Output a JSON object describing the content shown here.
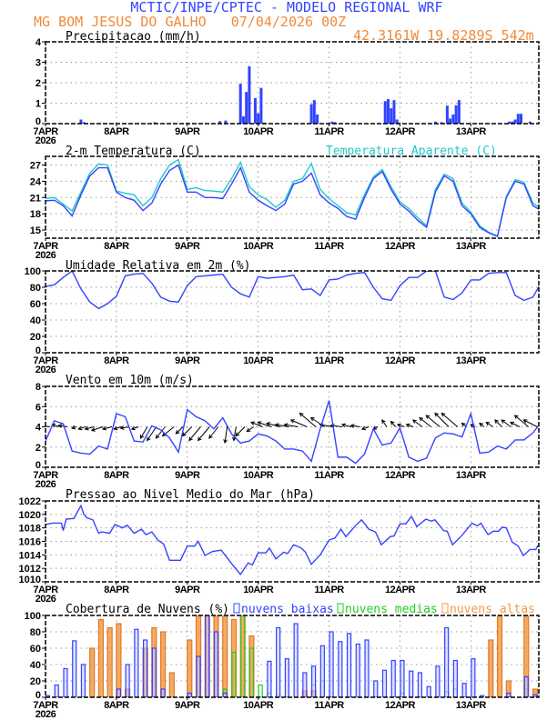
{
  "header": {
    "title": "MCTIC/INPE/CPTEC - MODELO REGIONAL WRF",
    "location_date": "MG BOM JESUS DO GALHO   07/04/2026 00Z",
    "coordinates": "42.3161W 19.8289S 542m"
  },
  "colors": {
    "blue": "#3344ff",
    "cyan": "#22c8c8",
    "orange": "#f39a4a",
    "green": "#22cc22",
    "title_blue": "#3344ff",
    "title_orange": "#f08a3a"
  },
  "chart_data": [
    {
      "type": "bar",
      "title": "Precipitacao (mm/h)",
      "ylim": [
        0,
        4
      ],
      "yticks": [
        0,
        1,
        2,
        3,
        4
      ],
      "x_unit": "hours since 07APR2026 00Z",
      "xlim": [
        0,
        167
      ],
      "x_tick_labels": [
        "7APR",
        "8APR",
        "9APR",
        "10APR",
        "11APR",
        "12APR",
        "13APR"
      ],
      "year_label": "2026",
      "bars": [
        [
          12,
          0.2
        ],
        [
          13,
          0.07
        ],
        [
          37,
          0.07
        ],
        [
          59,
          0.12
        ],
        [
          61,
          0.15
        ],
        [
          66,
          1.95
        ],
        [
          67,
          0.35
        ],
        [
          68,
          1.55
        ],
        [
          69,
          2.8
        ],
        [
          71,
          1.25
        ],
        [
          72,
          0.5
        ],
        [
          73,
          1.75
        ],
        [
          74,
          0.05
        ],
        [
          90,
          0.95
        ],
        [
          91,
          1.15
        ],
        [
          92,
          0.45
        ],
        [
          97,
          0.1
        ],
        [
          98,
          0.07
        ],
        [
          115,
          1.1
        ],
        [
          116,
          1.2
        ],
        [
          117,
          0.75
        ],
        [
          118,
          1.15
        ],
        [
          119,
          0.2
        ],
        [
          132,
          0.1
        ],
        [
          134,
          0.07
        ],
        [
          136,
          0.88
        ],
        [
          137,
          0.25
        ],
        [
          138,
          0.45
        ],
        [
          139,
          0.9
        ],
        [
          140,
          1.15
        ],
        [
          157,
          0.1
        ],
        [
          158,
          0.1
        ],
        [
          159,
          0.2
        ],
        [
          160,
          0.48
        ],
        [
          161,
          0.48
        ],
        [
          164,
          0.1
        ]
      ]
    },
    {
      "type": "line",
      "title": "2-m Temperatura (C)",
      "legend": "Temperatura Aparente (C)",
      "ylim": [
        13.5,
        28.6
      ],
      "yticks": [
        15,
        18,
        21,
        24,
        27
      ],
      "x_step_hours": 3,
      "series": [
        {
          "name": "2-m Temperatura",
          "values": [
            20.4,
            20.5,
            19.5,
            17.6,
            21.5,
            25,
            26.5,
            26.5,
            22,
            21,
            20.5,
            18.6,
            20,
            23.5,
            26,
            27,
            22,
            22,
            21,
            21,
            20.8,
            23.5,
            26.5,
            22,
            20.5,
            19.5,
            18.6,
            19.8,
            23.5,
            24,
            25.5,
            21.5,
            20,
            19,
            17.5,
            17,
            21,
            24.5,
            25.8,
            22.5,
            19.8,
            18.5,
            16.8,
            15.5,
            22,
            25,
            24,
            19.5,
            18,
            15.5,
            14.5,
            13.8,
            21,
            24,
            23.5,
            19.5,
            18.5
          ]
        },
        {
          "name": "Temperatura Aparente",
          "values": [
            20.8,
            21,
            19.8,
            18.5,
            22,
            25.5,
            27.2,
            27,
            22.2,
            21.8,
            21.5,
            19.5,
            21,
            24.5,
            27,
            28,
            22.5,
            22.8,
            22.3,
            22.2,
            22,
            24.5,
            27.5,
            23,
            21.5,
            20.6,
            19.2,
            20.5,
            24,
            24.5,
            27.3,
            22.5,
            20.8,
            19.5,
            18.2,
            17.8,
            21.5,
            24.8,
            26.2,
            23,
            20.2,
            19,
            17.3,
            15.8,
            22.5,
            25.3,
            24.5,
            20,
            18.3,
            15.8,
            14.6,
            13.9,
            21.2,
            24.3,
            23.8,
            20,
            18.8
          ]
        }
      ]
    },
    {
      "type": "line",
      "title": "Umidade Relativa em 2m (%)",
      "ylim": [
        0,
        100
      ],
      "yticks": [
        0,
        20,
        40,
        60,
        80,
        100
      ],
      "x_step_hours": 3,
      "values": [
        81,
        83,
        92,
        100,
        78,
        62,
        54,
        60,
        69,
        94,
        96,
        97,
        85,
        68,
        63,
        62,
        82,
        93,
        94,
        95,
        96,
        80,
        72,
        68,
        93,
        91,
        92,
        93,
        95,
        77,
        78,
        70,
        89,
        90,
        95,
        97,
        98,
        80,
        66,
        64,
        82,
        92,
        92,
        100,
        100,
        68,
        65,
        73,
        89,
        89,
        97,
        98,
        98,
        70,
        64,
        68,
        87
      ]
    },
    {
      "type": "line",
      "title": "Vento em 10m (m/s)",
      "ylim": [
        0,
        8
      ],
      "yticks": [
        0,
        2,
        4,
        6,
        8
      ],
      "x_step_hours": 3,
      "values": [
        2.6,
        4.6,
        4.3,
        1.6,
        1.4,
        1.3,
        2.1,
        1.8,
        5.3,
        5.0,
        2.6,
        2.5,
        4.1,
        3.7,
        2.9,
        1.5,
        5.7,
        5.0,
        4.6,
        3.8,
        4.9,
        3.3,
        2.4,
        2.6,
        3.3,
        3.1,
        2.6,
        1.8,
        1.8,
        1.6,
        0.6,
        3.8,
        6.6,
        1.0,
        1.0,
        0.4,
        1.3,
        3.8,
        2.2,
        2.4,
        3.9,
        1.0,
        0.6,
        0.9,
        2.9,
        3.4,
        3.3,
        3.0,
        5.3,
        1.4,
        1.5,
        2.1,
        1.8,
        2.7,
        2.7,
        3.4,
        4.5
      ],
      "vectors_u": [
        -2,
        -1.5,
        -2,
        -1,
        -1.5,
        -2,
        -2.5,
        -2,
        -1.5,
        -2,
        -1.5,
        -1.5,
        -2,
        -2,
        -2.5,
        -1.5,
        -2,
        -2.5,
        -2.5,
        -2,
        -0.5,
        -0.5,
        -2,
        -1.5,
        -2.5,
        -3,
        -3,
        -3,
        -3,
        -3.5,
        -3.5,
        -3,
        -3,
        -2.5,
        -2,
        -2,
        -1.5,
        -1,
        -1,
        -1,
        -1.5,
        -1.5,
        -2,
        -2.5,
        -3,
        -3,
        -3.5,
        -1,
        -1,
        -1,
        -1.5,
        -1.5,
        -2,
        -2,
        -3,
        -3
      ],
      "vectors_v": [
        0.3,
        0.5,
        0.3,
        -0.3,
        -0.5,
        -0.5,
        -0.8,
        -0.5,
        -0.5,
        -0.3,
        -0.5,
        -2.5,
        -3,
        -2.5,
        -2,
        -1.5,
        -2,
        -3,
        -3,
        -2.5,
        -3.5,
        -3,
        -2,
        -1,
        1,
        1,
        0.8,
        0.5,
        0.5,
        1.5,
        3,
        2,
        0.5,
        0.3,
        0.5,
        0.3,
        -0.5,
        -0.5,
        1.5,
        1.2,
        0.5,
        0.5,
        1.5,
        2,
        2.5,
        3,
        3,
        0.8,
        0.5,
        0.8,
        1,
        1.5,
        1.5,
        1,
        2.5,
        1.5
      ]
    },
    {
      "type": "line",
      "title": "Pressao ao Nivel Medio do Mar (hPa)",
      "ylim": [
        1010,
        1022
      ],
      "yticks": [
        1010,
        1012,
        1014,
        1016,
        1018,
        1020,
        1022
      ],
      "points": [
        [
          0,
          1018.5
        ],
        [
          2.4,
          1018.7
        ],
        [
          5.4,
          1018.7
        ],
        [
          6,
          1017.6
        ],
        [
          7,
          1019.3
        ],
        [
          9.6,
          1019.4
        ],
        [
          12,
          1021.3
        ],
        [
          13,
          1020
        ],
        [
          14,
          1019.5
        ],
        [
          16,
          1019.2
        ],
        [
          18,
          1017.2
        ],
        [
          19,
          1017.4
        ],
        [
          21.7,
          1017.2
        ],
        [
          23.5,
          1018.5
        ],
        [
          26,
          1018
        ],
        [
          27.7,
          1018.4
        ],
        [
          30,
          1017.2
        ],
        [
          32.5,
          1017.8
        ],
        [
          34,
          1017
        ],
        [
          36,
          1017.4
        ],
        [
          38,
          1016.2
        ],
        [
          40,
          1015.6
        ],
        [
          42,
          1013.2
        ],
        [
          45.7,
          1013.2
        ],
        [
          48,
          1015.3
        ],
        [
          50.5,
          1015.3
        ],
        [
          51.7,
          1016
        ],
        [
          54,
          1013.9
        ],
        [
          56.5,
          1014.5
        ],
        [
          59.5,
          1014.7
        ],
        [
          63,
          1012.7
        ],
        [
          66,
          1011.1
        ],
        [
          68.6,
          1012.8
        ],
        [
          70,
          1012.5
        ],
        [
          72,
          1014.3
        ],
        [
          74.6,
          1014.3
        ],
        [
          75.8,
          1015
        ],
        [
          78,
          1013.4
        ],
        [
          80.6,
          1014.4
        ],
        [
          82,
          1014.2
        ],
        [
          84,
          1015.5
        ],
        [
          86.6,
          1015
        ],
        [
          88,
          1014.4
        ],
        [
          90,
          1012.6
        ],
        [
          93,
          1014
        ],
        [
          96,
          1016.2
        ],
        [
          98,
          1016.5
        ],
        [
          100,
          1017.8
        ],
        [
          101.7,
          1016.7
        ],
        [
          104.7,
          1018.2
        ],
        [
          107,
          1019.2
        ],
        [
          109.5,
          1017.8
        ],
        [
          111.7,
          1017.4
        ],
        [
          113.7,
          1015.5
        ],
        [
          116.7,
          1016.7
        ],
        [
          118,
          1016.8
        ],
        [
          120,
          1018.6
        ],
        [
          122,
          1018.6
        ],
        [
          123.9,
          1019.7
        ],
        [
          125.7,
          1018.2
        ],
        [
          128.8,
          1019.3
        ],
        [
          130.6,
          1019
        ],
        [
          131.8,
          1019.2
        ],
        [
          134.8,
          1017.6
        ],
        [
          136,
          1017.5
        ],
        [
          137.8,
          1015.5
        ],
        [
          140.8,
          1016.8
        ],
        [
          144.4,
          1018.7
        ],
        [
          146.2,
          1018.3
        ],
        [
          147.4,
          1018.7
        ],
        [
          149.8,
          1017
        ],
        [
          151.6,
          1017.5
        ],
        [
          153.4,
          1017.5
        ],
        [
          154.6,
          1018.1
        ],
        [
          156,
          1018
        ],
        [
          158,
          1015.9
        ],
        [
          160,
          1015.3
        ],
        [
          161.8,
          1013.9
        ],
        [
          164,
          1014.8
        ],
        [
          166,
          1014.8
        ],
        [
          166.7,
          1015.4
        ]
      ]
    },
    {
      "type": "bar",
      "title": "Cobertura de Nuvens (%)",
      "ylim": [
        0,
        100
      ],
      "yticks": [
        0,
        20,
        40,
        60,
        80,
        100
      ],
      "x_step_hours": 3,
      "series": [
        {
          "name": "nuvens altas",
          "values": [
            0,
            0,
            0,
            0,
            0,
            60,
            95,
            85,
            90,
            10,
            0,
            60,
            85,
            80,
            30,
            0,
            70,
            100,
            100,
            100,
            100,
            95,
            100,
            75,
            0,
            0,
            0,
            0,
            0,
            8,
            8,
            0,
            0,
            0,
            0,
            0,
            0,
            0,
            0,
            0,
            0,
            0,
            0,
            0,
            0,
            0,
            0,
            0,
            0,
            0,
            70,
            100,
            20,
            0,
            100,
            10
          ]
        },
        {
          "name": "nuvens medias",
          "values": [
            0,
            0,
            0,
            0,
            0,
            0,
            0,
            0,
            0,
            0,
            0,
            0,
            0,
            0,
            0,
            0,
            0,
            0,
            0,
            0,
            10,
            55,
            100,
            60,
            15,
            5,
            3,
            0,
            0,
            0,
            15,
            20,
            0,
            0,
            0,
            0,
            0,
            0,
            0,
            0,
            5,
            0,
            0,
            0,
            0,
            7,
            10,
            0,
            0,
            0,
            0,
            0,
            0,
            0,
            10,
            0
          ]
        },
        {
          "name": "nuvens baixas",
          "values": [
            2,
            15,
            35,
            69,
            40,
            0,
            0,
            0,
            10,
            40,
            83,
            70,
            60,
            10,
            0,
            0,
            5,
            50,
            100,
            80,
            5,
            0,
            0,
            0,
            0,
            44,
            85,
            47,
            90,
            30,
            38,
            63,
            80,
            68,
            78,
            65,
            70,
            20,
            33,
            45,
            45,
            32,
            30,
            13,
            38,
            85,
            45,
            17,
            47,
            2,
            0,
            0,
            5,
            0,
            25,
            3
          ]
        }
      ]
    }
  ]
}
